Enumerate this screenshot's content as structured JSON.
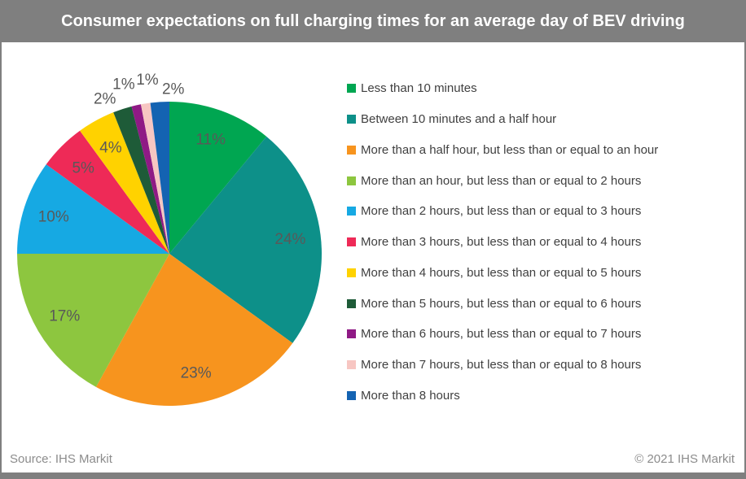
{
  "header": {
    "title": "Consumer expectations on full charging times for an average day of BEV driving"
  },
  "footer": {
    "source": "Source: IHS Markit",
    "copyright": "© 2021 IHS Markit"
  },
  "colors": {
    "title_bar": "#7f7f7f",
    "slice_label_text": "#595959",
    "legend_text": "#404040",
    "footer_text": "#8c8c8c"
  },
  "chart_data": {
    "type": "pie",
    "title": "Consumer expectations on full charging times for an average day of BEV driving",
    "categories": [
      "Less than 10 minutes",
      "Between 10 minutes and a half hour",
      "More than a half hour, but less than or equal to an hour",
      "More than an hour, but less than or equal to 2 hours",
      "More than 2 hours, but less than or equal to 3 hours",
      "More than 3 hours, but less than or equal to 4 hours",
      "More than 4 hours, but less than or equal to 5 hours",
      "More than 5 hours, but less than or equal to 6 hours",
      "More than 6 hours, but less than or equal to 7 hours",
      "More than 7 hours, but less than or equal to 8 hours",
      "More than 8 hours"
    ],
    "values": [
      11,
      24,
      23,
      17,
      10,
      5,
      4,
      2,
      1,
      1,
      2
    ],
    "unit": "%",
    "data_labels": [
      "11%",
      "24%",
      "23%",
      "17%",
      "10%",
      "5%",
      "4%",
      "2%",
      "1%",
      "1%",
      "2%"
    ],
    "colors": [
      "#00A651",
      "#0D9089",
      "#F7941E",
      "#8DC63F",
      "#16A9E3",
      "#EE2A57",
      "#FFD200",
      "#1E5B38",
      "#8F1A85",
      "#F7C6C2",
      "#1463B2"
    ],
    "start_angle_deg": 0,
    "direction": "clockwise",
    "legend_position": "right",
    "label_style": "percent",
    "inside_label_min_value": 4
  }
}
